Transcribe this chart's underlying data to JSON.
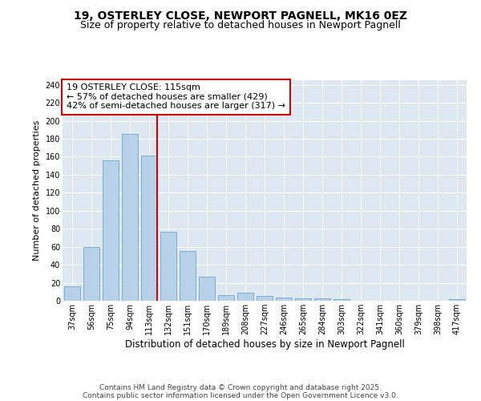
{
  "title_line1": "19, OSTERLEY CLOSE, NEWPORT PAGNELL, MK16 0EZ",
  "title_line2": "Size of property relative to detached houses in Newport Pagnell",
  "xlabel": "Distribution of detached houses by size in Newport Pagnell",
  "ylabel": "Number of detached properties",
  "categories": [
    "37sqm",
    "56sqm",
    "75sqm",
    "94sqm",
    "113sqm",
    "132sqm",
    "151sqm",
    "170sqm",
    "189sqm",
    "208sqm",
    "227sqm",
    "246sqm",
    "265sqm",
    "284sqm",
    "303sqm",
    "322sqm",
    "341sqm",
    "360sqm",
    "379sqm",
    "398sqm",
    "417sqm"
  ],
  "values": [
    16,
    60,
    156,
    185,
    161,
    77,
    55,
    27,
    6,
    9,
    5,
    4,
    3,
    3,
    2,
    0,
    0,
    0,
    0,
    0,
    2
  ],
  "bar_color": "#b8d0e8",
  "bar_edge_color": "#7aadd4",
  "vline_x_index": 4,
  "vline_color": "#cc0000",
  "annotation_line1": "19 OSTERLEY CLOSE: 115sqm",
  "annotation_line2": "← 57% of detached houses are smaller (429)",
  "annotation_line3": "42% of semi-detached houses are larger (317) →",
  "ylim": [
    0,
    245
  ],
  "yticks": [
    0,
    20,
    40,
    60,
    80,
    100,
    120,
    140,
    160,
    180,
    200,
    220,
    240
  ],
  "fig_bg_color": "#ffffff",
  "plot_bg_color": "#dde8f0",
  "grid_color": "#ffffff",
  "footer_line1": "Contains HM Land Registry data © Crown copyright and database right 2025.",
  "footer_line2": "Contains public sector information licensed under the Open Government Licence v3.0.",
  "title_fontsize": 10,
  "subtitle_fontsize": 9,
  "tick_fontsize": 7,
  "ylabel_fontsize": 8,
  "xlabel_fontsize": 8.5,
  "ann_fontsize": 8,
  "footer_fontsize": 6.5
}
